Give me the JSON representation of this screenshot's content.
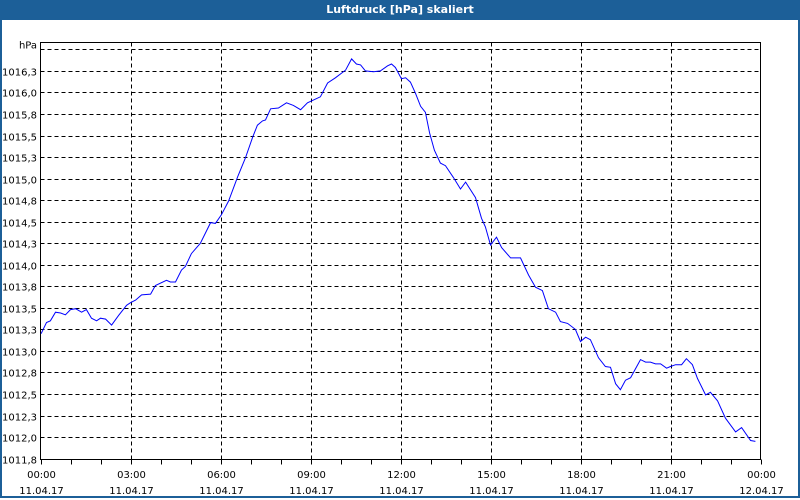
{
  "title": "Luftdruck [hPa] skaliert",
  "chart_data": {
    "type": "line",
    "title": "Luftdruck [hPa] skaliert",
    "ylabel": "hPa",
    "xlabel": "",
    "xlim": [
      0,
      24
    ],
    "ylim": [
      1011.74,
      1016.58
    ],
    "grid": true,
    "line_color": "#0000ff",
    "y_ticks": [
      {
        "value": 1011.75,
        "label": "1011,8"
      },
      {
        "value": 1012.0,
        "label": "1012,0"
      },
      {
        "value": 1012.25,
        "label": "1012,3"
      },
      {
        "value": 1012.5,
        "label": "1012,5"
      },
      {
        "value": 1012.75,
        "label": "1012,8"
      },
      {
        "value": 1013.0,
        "label": "1013,0"
      },
      {
        "value": 1013.25,
        "label": "1013,3"
      },
      {
        "value": 1013.5,
        "label": "1013,5"
      },
      {
        "value": 1013.75,
        "label": "1013,8"
      },
      {
        "value": 1014.0,
        "label": "1014,0"
      },
      {
        "value": 1014.25,
        "label": "1014,3"
      },
      {
        "value": 1014.5,
        "label": "1014,5"
      },
      {
        "value": 1014.75,
        "label": "1014,8"
      },
      {
        "value": 1015.0,
        "label": "1015,0"
      },
      {
        "value": 1015.25,
        "label": "1015,3"
      },
      {
        "value": 1015.5,
        "label": "1015,5"
      },
      {
        "value": 1015.75,
        "label": "1015,8"
      },
      {
        "value": 1016.0,
        "label": "1016,0"
      },
      {
        "value": 1016.25,
        "label": "1016,3"
      },
      {
        "value": 1016.5,
        "label": ""
      }
    ],
    "x_ticks": [
      {
        "value": 0,
        "time": "00:00",
        "date": "11.04.17"
      },
      {
        "value": 3,
        "time": "03:00",
        "date": "11.04.17"
      },
      {
        "value": 6,
        "time": "06:00",
        "date": "11.04.17"
      },
      {
        "value": 9,
        "time": "09:00",
        "date": "11.04.17"
      },
      {
        "value": 12,
        "time": "12:00",
        "date": "11.04.17"
      },
      {
        "value": 15,
        "time": "15:00",
        "date": "11.04.17"
      },
      {
        "value": 18,
        "time": "18:00",
        "date": "11.04.17"
      },
      {
        "value": 21,
        "time": "21:00",
        "date": "11.04.17"
      },
      {
        "value": 24,
        "time": "00:00",
        "date": "12.04.17"
      }
    ],
    "series": [
      {
        "name": "Luftdruck",
        "points": [
          [
            0.02,
            1013.2
          ],
          [
            0.2,
            1013.33
          ],
          [
            0.33,
            1013.35
          ],
          [
            0.5,
            1013.45
          ],
          [
            0.67,
            1013.44
          ],
          [
            0.83,
            1013.42
          ],
          [
            1.0,
            1013.48
          ],
          [
            1.17,
            1013.49
          ],
          [
            1.37,
            1013.45
          ],
          [
            1.53,
            1013.48
          ],
          [
            1.7,
            1013.38
          ],
          [
            1.87,
            1013.35
          ],
          [
            2.0,
            1013.38
          ],
          [
            2.17,
            1013.37
          ],
          [
            2.37,
            1013.3
          ],
          [
            2.6,
            1013.41
          ],
          [
            2.87,
            1013.53
          ],
          [
            3.0,
            1013.56
          ],
          [
            3.17,
            1013.59
          ],
          [
            3.37,
            1013.65
          ],
          [
            3.67,
            1013.66
          ],
          [
            3.83,
            1013.76
          ],
          [
            4.2,
            1013.82
          ],
          [
            4.33,
            1013.8
          ],
          [
            4.5,
            1013.8
          ],
          [
            4.7,
            1013.94
          ],
          [
            4.83,
            1013.98
          ],
          [
            5.03,
            1014.13
          ],
          [
            5.33,
            1014.25
          ],
          [
            5.67,
            1014.49
          ],
          [
            5.83,
            1014.48
          ],
          [
            6.03,
            1014.58
          ],
          [
            6.27,
            1014.74
          ],
          [
            6.57,
            1015.02
          ],
          [
            6.83,
            1015.24
          ],
          [
            7.07,
            1015.48
          ],
          [
            7.23,
            1015.62
          ],
          [
            7.4,
            1015.67
          ],
          [
            7.5,
            1015.68
          ],
          [
            7.67,
            1015.81
          ],
          [
            7.93,
            1015.82
          ],
          [
            8.2,
            1015.88
          ],
          [
            8.43,
            1015.85
          ],
          [
            8.67,
            1015.8
          ],
          [
            8.9,
            1015.88
          ],
          [
            9.33,
            1015.95
          ],
          [
            9.57,
            1016.11
          ],
          [
            9.83,
            1016.17
          ],
          [
            10.17,
            1016.26
          ],
          [
            10.37,
            1016.39
          ],
          [
            10.53,
            1016.33
          ],
          [
            10.67,
            1016.32
          ],
          [
            10.83,
            1016.25
          ],
          [
            11.1,
            1016.24
          ],
          [
            11.33,
            1016.25
          ],
          [
            11.57,
            1016.31
          ],
          [
            11.7,
            1016.33
          ],
          [
            11.83,
            1016.29
          ],
          [
            12.03,
            1016.16
          ],
          [
            12.17,
            1016.17
          ],
          [
            12.33,
            1016.12
          ],
          [
            12.5,
            1015.99
          ],
          [
            12.67,
            1015.84
          ],
          [
            12.83,
            1015.77
          ],
          [
            12.97,
            1015.53
          ],
          [
            13.13,
            1015.33
          ],
          [
            13.33,
            1015.18
          ],
          [
            13.5,
            1015.15
          ],
          [
            13.77,
            1015.01
          ],
          [
            14.0,
            1014.88
          ],
          [
            14.17,
            1014.96
          ],
          [
            14.5,
            1014.78
          ],
          [
            14.7,
            1014.54
          ],
          [
            14.83,
            1014.44
          ],
          [
            15.0,
            1014.23
          ],
          [
            15.2,
            1014.32
          ],
          [
            15.37,
            1014.2
          ],
          [
            15.67,
            1014.08
          ],
          [
            16.0,
            1014.08
          ],
          [
            16.27,
            1013.88
          ],
          [
            16.5,
            1013.74
          ],
          [
            16.73,
            1013.7
          ],
          [
            16.93,
            1013.49
          ],
          [
            17.17,
            1013.45
          ],
          [
            17.33,
            1013.34
          ],
          [
            17.57,
            1013.32
          ],
          [
            17.83,
            1013.25
          ],
          [
            18.0,
            1013.11
          ],
          [
            18.17,
            1013.16
          ],
          [
            18.33,
            1013.13
          ],
          [
            18.6,
            1012.92
          ],
          [
            18.83,
            1012.82
          ],
          [
            19.0,
            1012.81
          ],
          [
            19.17,
            1012.62
          ],
          [
            19.33,
            1012.55
          ],
          [
            19.5,
            1012.66
          ],
          [
            19.67,
            1012.69
          ],
          [
            20.0,
            1012.9
          ],
          [
            20.17,
            1012.87
          ],
          [
            20.33,
            1012.87
          ],
          [
            20.5,
            1012.85
          ],
          [
            20.67,
            1012.85
          ],
          [
            20.87,
            1012.8
          ],
          [
            21.0,
            1012.82
          ],
          [
            21.17,
            1012.84
          ],
          [
            21.37,
            1012.84
          ],
          [
            21.53,
            1012.91
          ],
          [
            21.73,
            1012.84
          ],
          [
            21.9,
            1012.68
          ],
          [
            22.17,
            1012.49
          ],
          [
            22.33,
            1012.52
          ],
          [
            22.57,
            1012.42
          ],
          [
            22.83,
            1012.22
          ],
          [
            23.17,
            1012.06
          ],
          [
            23.37,
            1012.11
          ],
          [
            23.67,
            1011.96
          ],
          [
            23.83,
            1011.95
          ]
        ]
      }
    ]
  }
}
